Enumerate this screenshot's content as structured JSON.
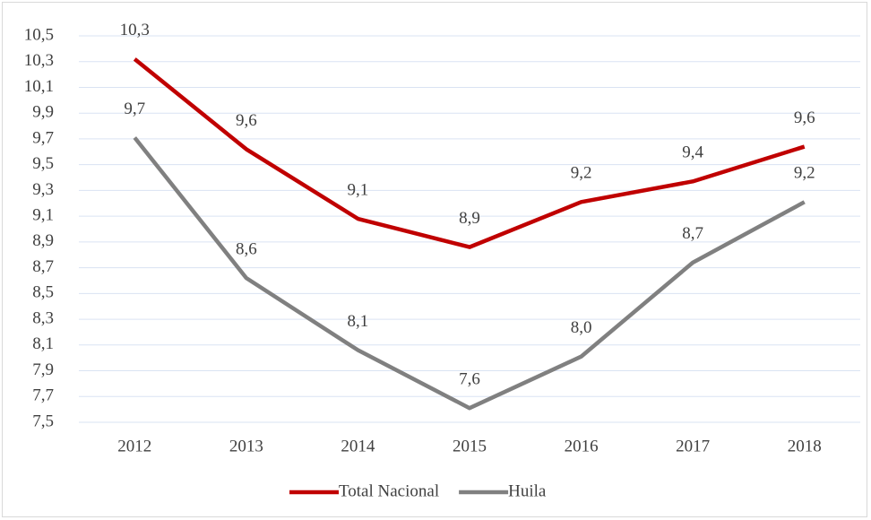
{
  "chart_data": {
    "type": "line",
    "categories": [
      "2012",
      "2013",
      "2014",
      "2015",
      "2016",
      "2017",
      "2018"
    ],
    "series": [
      {
        "name": "Total Nacional",
        "color": "#c00000",
        "values": [
          10.32,
          9.62,
          9.08,
          8.86,
          9.21,
          9.37,
          9.64
        ],
        "value_labels": [
          "10,3",
          "9,6",
          "9,1",
          "8,9",
          "9,2",
          "9,4",
          "9,6"
        ]
      },
      {
        "name": "Huila",
        "color": "#808080",
        "values": [
          9.71,
          8.62,
          8.06,
          7.61,
          8.01,
          8.74,
          9.21
        ],
        "value_labels": [
          "9,7",
          "8,6",
          "8,1",
          "7,6",
          "8,0",
          "8,7",
          "9,2"
        ]
      }
    ],
    "ylim": [
      7.5,
      10.5
    ],
    "yticks": [
      {
        "value": 7.5,
        "label": "7,5"
      },
      {
        "value": 7.7,
        "label": "7,7"
      },
      {
        "value": 7.9,
        "label": "7,9"
      },
      {
        "value": 8.1,
        "label": "8,1"
      },
      {
        "value": 8.3,
        "label": "8,3"
      },
      {
        "value": 8.5,
        "label": "8,5"
      },
      {
        "value": 8.7,
        "label": "8,7"
      },
      {
        "value": 8.9,
        "label": "8,9"
      },
      {
        "value": 9.1,
        "label": "9,1"
      },
      {
        "value": 9.3,
        "label": "9,3"
      },
      {
        "value": 9.5,
        "label": "9,5"
      },
      {
        "value": 9.7,
        "label": "9,7"
      },
      {
        "value": 9.9,
        "label": "9,9"
      },
      {
        "value": 10.1,
        "label": "10,1"
      },
      {
        "value": 10.3,
        "label": "10,3"
      },
      {
        "value": 10.5,
        "label": "10,5"
      }
    ],
    "grid": true,
    "legend": "bottom"
  }
}
